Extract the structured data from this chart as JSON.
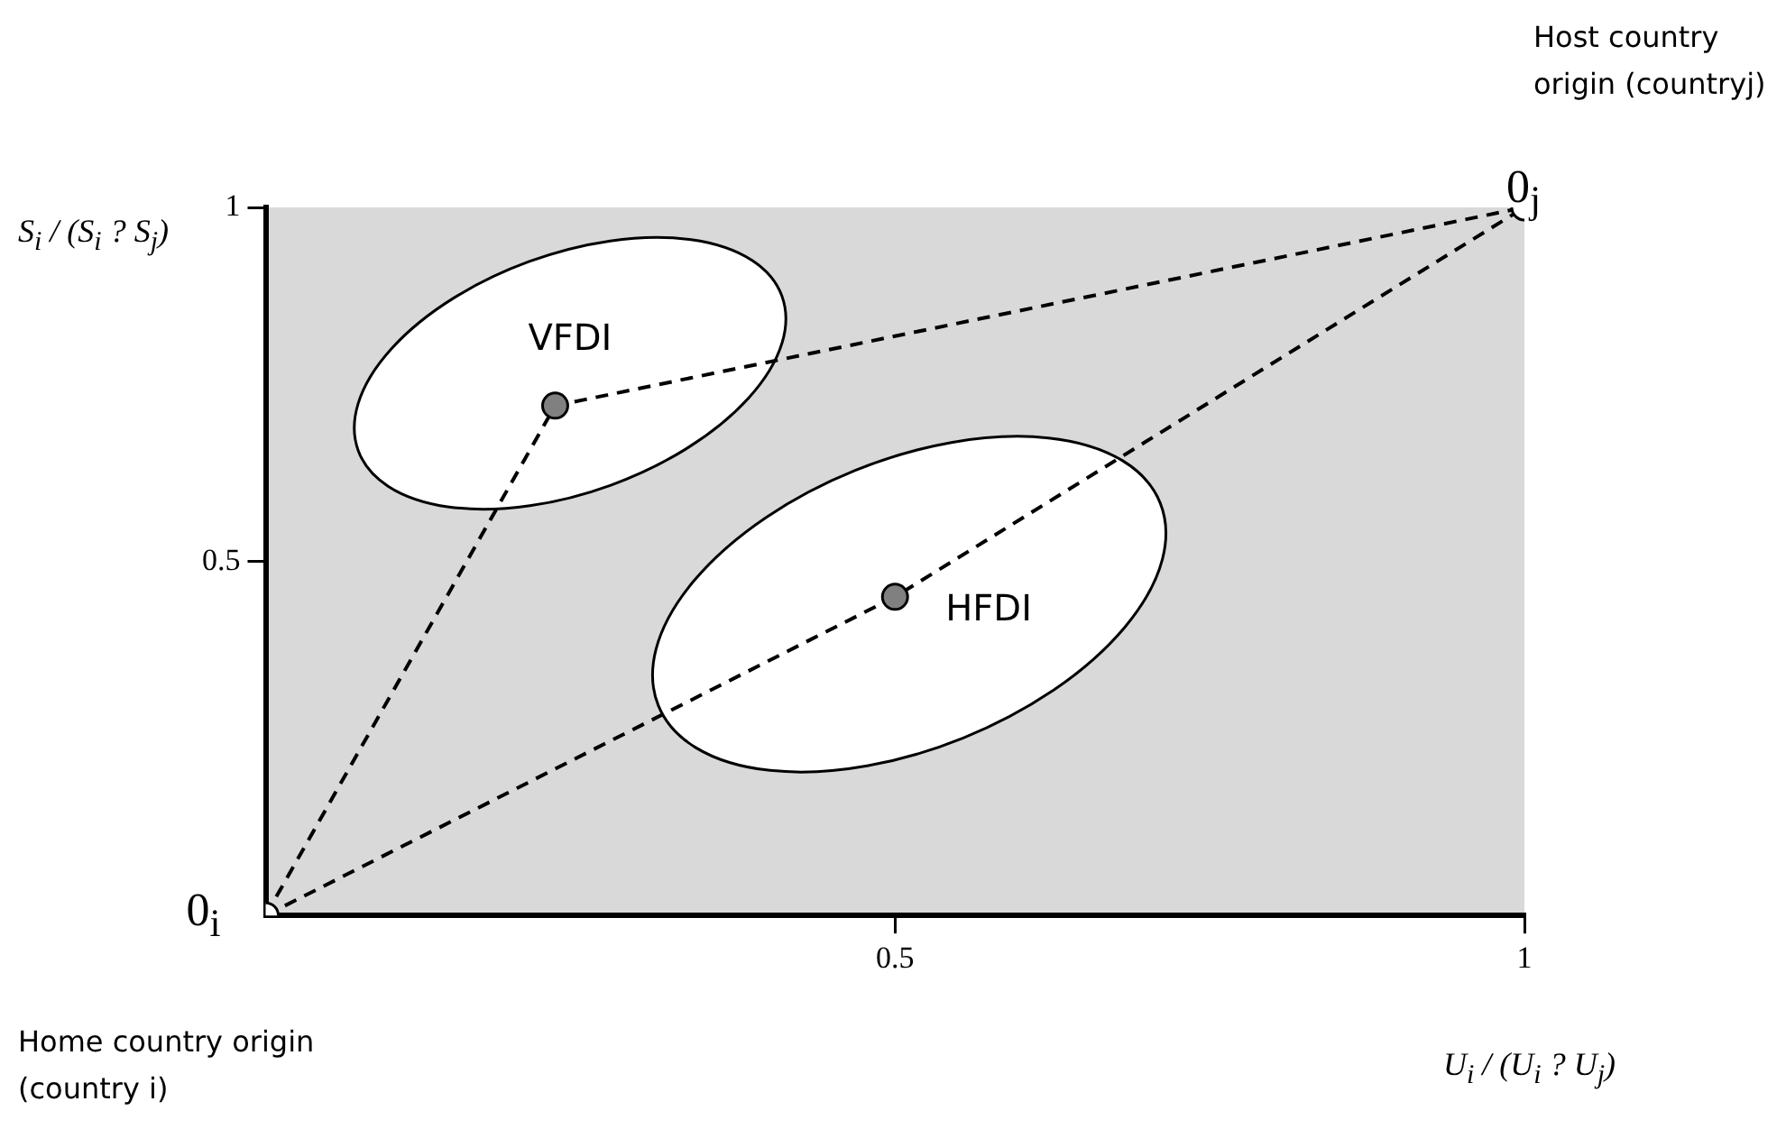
{
  "chart_data": {
    "type": "scatter",
    "xlabel": "U$_{i}$ / (U$_{i}$ ? U$_{j}$)",
    "ylabel": "S$_{i}$ / (S$_{i}$ ? S$_{j}$)",
    "xlim": [
      0,
      1
    ],
    "ylim": [
      0,
      1
    ],
    "xticks": [
      0.5,
      1
    ],
    "yticks": [
      0.5,
      1
    ],
    "grid": false,
    "series": [
      {
        "type": "line",
        "x": [
          0,
          0.23,
          1
        ],
        "values": [
          0,
          0.72,
          1
        ],
        "color": "#000000",
        "line_style": "dashed",
        "marker": "none"
      },
      {
        "type": "line",
        "x": [
          0,
          0.5,
          1
        ],
        "values": [
          0,
          0.45,
          1
        ],
        "color": "#000000",
        "line_style": "dashed",
        "marker": "none"
      },
      {
        "type": "scatter",
        "x": [
          0.23,
          0.5
        ],
        "values": [
          0.72,
          0.45
        ],
        "color": "#808080",
        "marker": "circle"
      },
      {
        "type": "scatter",
        "x": [
          0,
          1
        ],
        "values": [
          0,
          1
        ],
        "color": "#ffffff",
        "marker": "circle"
      }
    ],
    "annotations": [
      "Host country origin (countryj)",
      "Home country origin (country i)",
      {
        "text": "0$_{i}$",
        "x": 0,
        "y": 0
      },
      {
        "text": "0$_{j}$",
        "x": 1,
        "y": 1
      },
      {
        "text": "VFDI",
        "x": 0.23,
        "y": 0.72
      },
      {
        "text": "HFDI",
        "x": 0.5,
        "y": 0.45
      }
    ]
  }
}
